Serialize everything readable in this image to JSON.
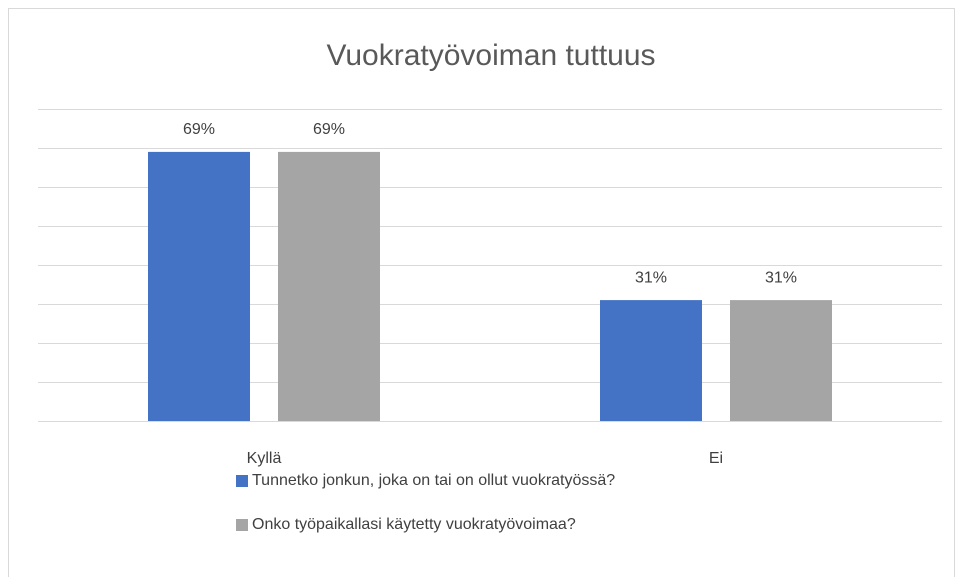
{
  "chart_data": {
    "type": "bar",
    "title": "Vuokratyövoiman tuttuus",
    "categories": [
      "Kyllä",
      "Ei"
    ],
    "series": [
      {
        "name": "Tunnetko jonkun, joka on tai on ollut vuokratyössä?",
        "color": "#4472c4",
        "values": [
          69,
          31
        ],
        "value_labels": [
          "69%",
          "31%"
        ]
      },
      {
        "name": "Onko työpaikallasi käytetty vuokratyövoimaa?",
        "color": "#a5a5a5",
        "values": [
          69,
          31
        ],
        "value_labels": [
          "69%",
          "31%"
        ]
      }
    ],
    "ylim": [
      0,
      80
    ],
    "yticks": [
      0,
      10,
      20,
      30,
      40,
      50,
      60,
      70,
      80
    ],
    "grid": true,
    "legend": "bottom"
  }
}
